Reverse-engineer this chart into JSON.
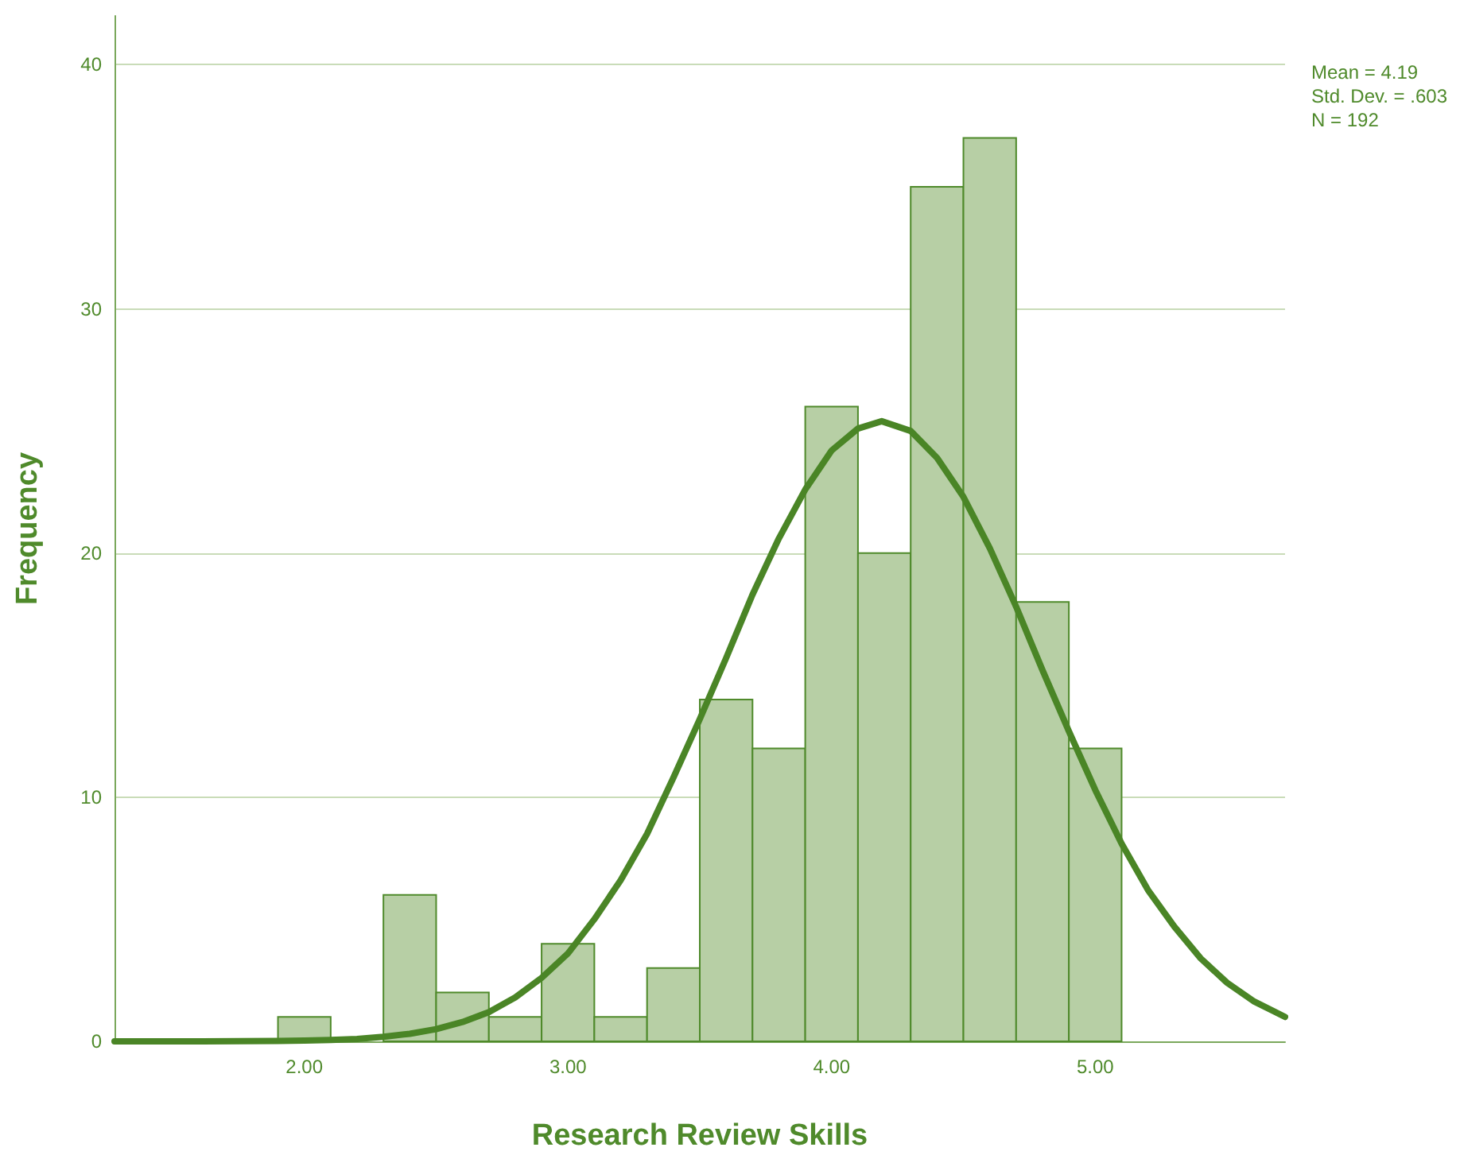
{
  "chart_data": {
    "type": "histogram",
    "xlabel": "Research Review Skills",
    "ylabel": "Frequency",
    "annotations": [
      "Mean = 4.19",
      "Std. Dev. = .603",
      "N = 192"
    ],
    "xlim": [
      1.28,
      5.72
    ],
    "xticks": [
      {
        "value": 2,
        "label": "2.00"
      },
      {
        "value": 3,
        "label": "3.00"
      },
      {
        "value": 4,
        "label": "4.00"
      },
      {
        "value": 5,
        "label": "5.00"
      }
    ],
    "ylim": [
      0,
      42
    ],
    "yticks": [
      0,
      10,
      20,
      30,
      40
    ],
    "grid": "y",
    "series": [
      {
        "color": "#b7cfa5",
        "bins": [
          1.9,
          2.1,
          2.3,
          2.5,
          2.7,
          2.9,
          3.1,
          3.3,
          3.5,
          3.7,
          3.9,
          4.1,
          4.3,
          4.5,
          4.7,
          4.9,
          5.1
        ],
        "values": [
          1,
          0,
          6,
          2,
          1,
          4,
          1,
          3,
          14,
          12,
          26,
          20,
          35,
          37,
          18,
          12
        ]
      },
      {
        "type": "line",
        "color": "#4a8526",
        "marker": "none",
        "x": [
          1.28,
          1.6,
          1.9,
          2.0,
          2.1,
          2.2,
          2.3,
          2.4,
          2.5,
          2.6,
          2.7,
          2.8,
          2.9,
          3.0,
          3.1,
          3.2,
          3.3,
          3.4,
          3.5,
          3.6,
          3.7,
          3.8,
          3.9,
          4.0,
          4.1,
          4.19,
          4.3,
          4.4,
          4.5,
          4.6,
          4.7,
          4.8,
          4.9,
          5.0,
          5.1,
          5.2,
          5.3,
          5.4,
          5.5,
          5.6,
          5.72
        ],
        "values": [
          0,
          0,
          0.02,
          0.03,
          0.06,
          0.1,
          0.19,
          0.31,
          0.5,
          0.79,
          1.2,
          1.8,
          2.6,
          3.6,
          5,
          6.6,
          8.5,
          10.8,
          13.2,
          15.7,
          18.3,
          20.6,
          22.6,
          24.2,
          25.1,
          25.4,
          25,
          23.9,
          22.3,
          20.2,
          17.8,
          15.2,
          12.7,
          10.3,
          8.1,
          6.2,
          4.7,
          3.4,
          2.4,
          1.65,
          1
        ]
      }
    ]
  }
}
